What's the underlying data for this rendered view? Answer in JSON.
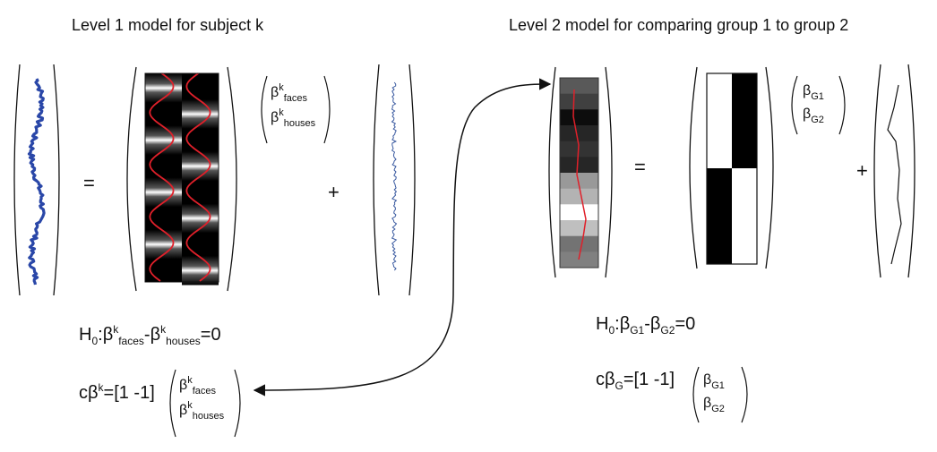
{
  "level1": {
    "title": "Level 1 model for subject k",
    "beta_symbol": "β",
    "subject_sup": "k",
    "faces": "faces",
    "houses": "houses",
    "h0_prefix": "H",
    "h0_sub": "0",
    "h0_colon": ":",
    "h0_minus": "-",
    "h0_end": "=0",
    "contrast_c": "c",
    "contrast_eq": "=[1 -1]",
    "equals": "=",
    "plus": "+"
  },
  "level2": {
    "title": "Level 2 model for comparing group 1 to group 2",
    "beta_symbol": "β",
    "g1": "G1",
    "g2": "G2",
    "g": "G",
    "h0_prefix": "H",
    "h0_sub": "0",
    "h0_colon": ":",
    "h0_minus": "-",
    "h0_end": "=0",
    "contrast_c": "c",
    "contrast_eq": "=[1 -1]",
    "equals": "=",
    "plus": "+"
  },
  "colors": {
    "signal_blue": "#2a47a8",
    "residual_blue": "#3a5aa0",
    "hrf_red": "#e0202a",
    "ink": "#111111"
  },
  "level2_data_gray_levels": [
    0.35,
    0.25,
    0.05,
    0.15,
    0.2,
    0.15,
    0.6,
    0.7,
    1.0,
    0.75,
    0.45,
    0.5
  ]
}
